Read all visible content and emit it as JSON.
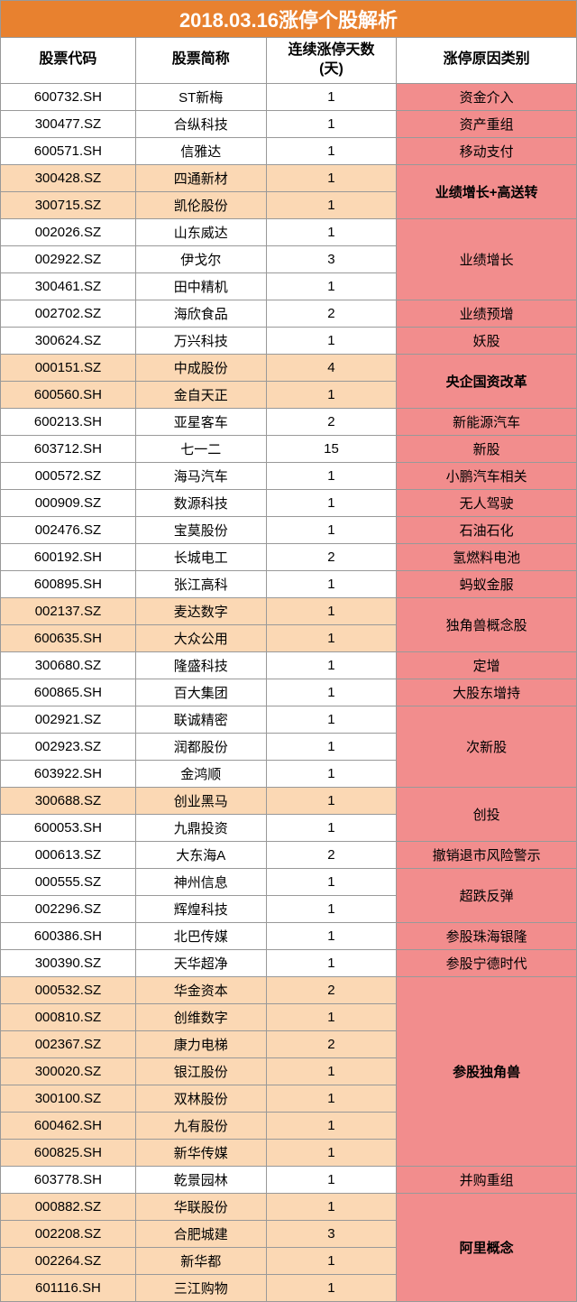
{
  "title": "2018.03.16涨停个股解析",
  "headers": {
    "code": "股票代码",
    "name": "股票简称",
    "days": "连续涨停天数\n(天)",
    "reason": "涨停原因类别"
  },
  "colors": {
    "header_bg": "#e8812f",
    "peach": "#fbd8b4",
    "pink": "#f28d8d",
    "border": "#999999"
  },
  "rows": [
    {
      "code": "600732.SH",
      "name": "ST新梅",
      "days": "1",
      "reason": "资金介入",
      "span": 1,
      "peach": false
    },
    {
      "code": "300477.SZ",
      "name": "合纵科技",
      "days": "1",
      "reason": "资产重组",
      "span": 1,
      "peach": false
    },
    {
      "code": "600571.SH",
      "name": "信雅达",
      "days": "1",
      "reason": "移动支付",
      "span": 1,
      "peach": false
    },
    {
      "code": "300428.SZ",
      "name": "四通新材",
      "days": "1",
      "reason": "业绩增长+高送转",
      "span": 2,
      "peach": true,
      "bold": true
    },
    {
      "code": "300715.SZ",
      "name": "凯伦股份",
      "days": "1",
      "peach": true
    },
    {
      "code": "002026.SZ",
      "name": "山东威达",
      "days": "1",
      "reason": "业绩增长",
      "span": 3,
      "peach": false
    },
    {
      "code": "002922.SZ",
      "name": "伊戈尔",
      "days": "3",
      "peach": false
    },
    {
      "code": "300461.SZ",
      "name": "田中精机",
      "days": "1",
      "peach": false
    },
    {
      "code": "002702.SZ",
      "name": "海欣食品",
      "days": "2",
      "reason": "业绩预增",
      "span": 1,
      "peach": false
    },
    {
      "code": "300624.SZ",
      "name": "万兴科技",
      "days": "1",
      "reason": "妖股",
      "span": 1,
      "peach": false
    },
    {
      "code": "000151.SZ",
      "name": "中成股份",
      "days": "4",
      "reason": "央企国资改革",
      "span": 2,
      "peach": true,
      "bold": true
    },
    {
      "code": "600560.SH",
      "name": "金自天正",
      "days": "1",
      "peach": true
    },
    {
      "code": "600213.SH",
      "name": "亚星客车",
      "days": "2",
      "reason": "新能源汽车",
      "span": 1,
      "peach": false
    },
    {
      "code": "603712.SH",
      "name": "七一二",
      "days": "15",
      "reason": "新股",
      "span": 1,
      "peach": false
    },
    {
      "code": "000572.SZ",
      "name": "海马汽车",
      "days": "1",
      "reason": "小鹏汽车相关",
      "span": 1,
      "peach": false
    },
    {
      "code": "000909.SZ",
      "name": "数源科技",
      "days": "1",
      "reason": "无人驾驶",
      "span": 1,
      "peach": false
    },
    {
      "code": "002476.SZ",
      "name": "宝莫股份",
      "days": "1",
      "reason": "石油石化",
      "span": 1,
      "peach": false
    },
    {
      "code": "600192.SH",
      "name": "长城电工",
      "days": "2",
      "reason": "氢燃料电池",
      "span": 1,
      "peach": false
    },
    {
      "code": "600895.SH",
      "name": "张江高科",
      "days": "1",
      "reason": "蚂蚁金服",
      "span": 1,
      "peach": false
    },
    {
      "code": "002137.SZ",
      "name": "麦达数字",
      "days": "1",
      "reason": "独角兽概念股",
      "span": 2,
      "peach": true
    },
    {
      "code": "600635.SH",
      "name": "大众公用",
      "days": "1",
      "peach": true
    },
    {
      "code": "300680.SZ",
      "name": "隆盛科技",
      "days": "1",
      "reason": "定增",
      "span": 1,
      "peach": false
    },
    {
      "code": "600865.SH",
      "name": "百大集团",
      "days": "1",
      "reason": "大股东增持",
      "span": 1,
      "peach": false
    },
    {
      "code": "002921.SZ",
      "name": "联诚精密",
      "days": "1",
      "reason": "次新股",
      "span": 3,
      "peach": false
    },
    {
      "code": "002923.SZ",
      "name": "润都股份",
      "days": "1",
      "peach": false
    },
    {
      "code": "603922.SH",
      "name": "金鸿顺",
      "days": "1",
      "peach": false
    },
    {
      "code": "300688.SZ",
      "name": "创业黑马",
      "days": "1",
      "reason": "创投",
      "span": 2,
      "peach": true
    },
    {
      "code": "600053.SH",
      "name": "九鼎投资",
      "days": "1",
      "peach": false
    },
    {
      "code": "000613.SZ",
      "name": "大东海A",
      "days": "2",
      "reason": "撤销退市风险警示",
      "span": 1,
      "peach": false
    },
    {
      "code": "000555.SZ",
      "name": "神州信息",
      "days": "1",
      "reason": "超跌反弹",
      "span": 2,
      "peach": false
    },
    {
      "code": "002296.SZ",
      "name": "辉煌科技",
      "days": "1",
      "peach": false
    },
    {
      "code": "600386.SH",
      "name": "北巴传媒",
      "days": "1",
      "reason": "参股珠海银隆",
      "span": 1,
      "peach": false
    },
    {
      "code": "300390.SZ",
      "name": "天华超净",
      "days": "1",
      "reason": "参股宁德时代",
      "span": 1,
      "peach": false
    },
    {
      "code": "000532.SZ",
      "name": "华金资本",
      "days": "2",
      "reason": "参股独角兽",
      "span": 7,
      "peach": true,
      "bold": true
    },
    {
      "code": "000810.SZ",
      "name": "创维数字",
      "days": "1",
      "peach": true
    },
    {
      "code": "002367.SZ",
      "name": "康力电梯",
      "days": "2",
      "peach": true
    },
    {
      "code": "300020.SZ",
      "name": "银江股份",
      "days": "1",
      "peach": true
    },
    {
      "code": "300100.SZ",
      "name": "双林股份",
      "days": "1",
      "peach": true
    },
    {
      "code": "600462.SH",
      "name": "九有股份",
      "days": "1",
      "peach": true
    },
    {
      "code": "600825.SH",
      "name": "新华传媒",
      "days": "1",
      "peach": true
    },
    {
      "code": "603778.SH",
      "name": "乾景园林",
      "days": "1",
      "reason": "并购重组",
      "span": 1,
      "peach": false
    },
    {
      "code": "000882.SZ",
      "name": "华联股份",
      "days": "1",
      "reason": "阿里概念",
      "span": 4,
      "peach": true,
      "bold": true
    },
    {
      "code": "002208.SZ",
      "name": "合肥城建",
      "days": "3",
      "peach": true
    },
    {
      "code": "002264.SZ",
      "name": "新华都",
      "days": "1",
      "peach": true
    },
    {
      "code": "601116.SH",
      "name": "三江购物",
      "days": "1",
      "peach": true
    }
  ]
}
